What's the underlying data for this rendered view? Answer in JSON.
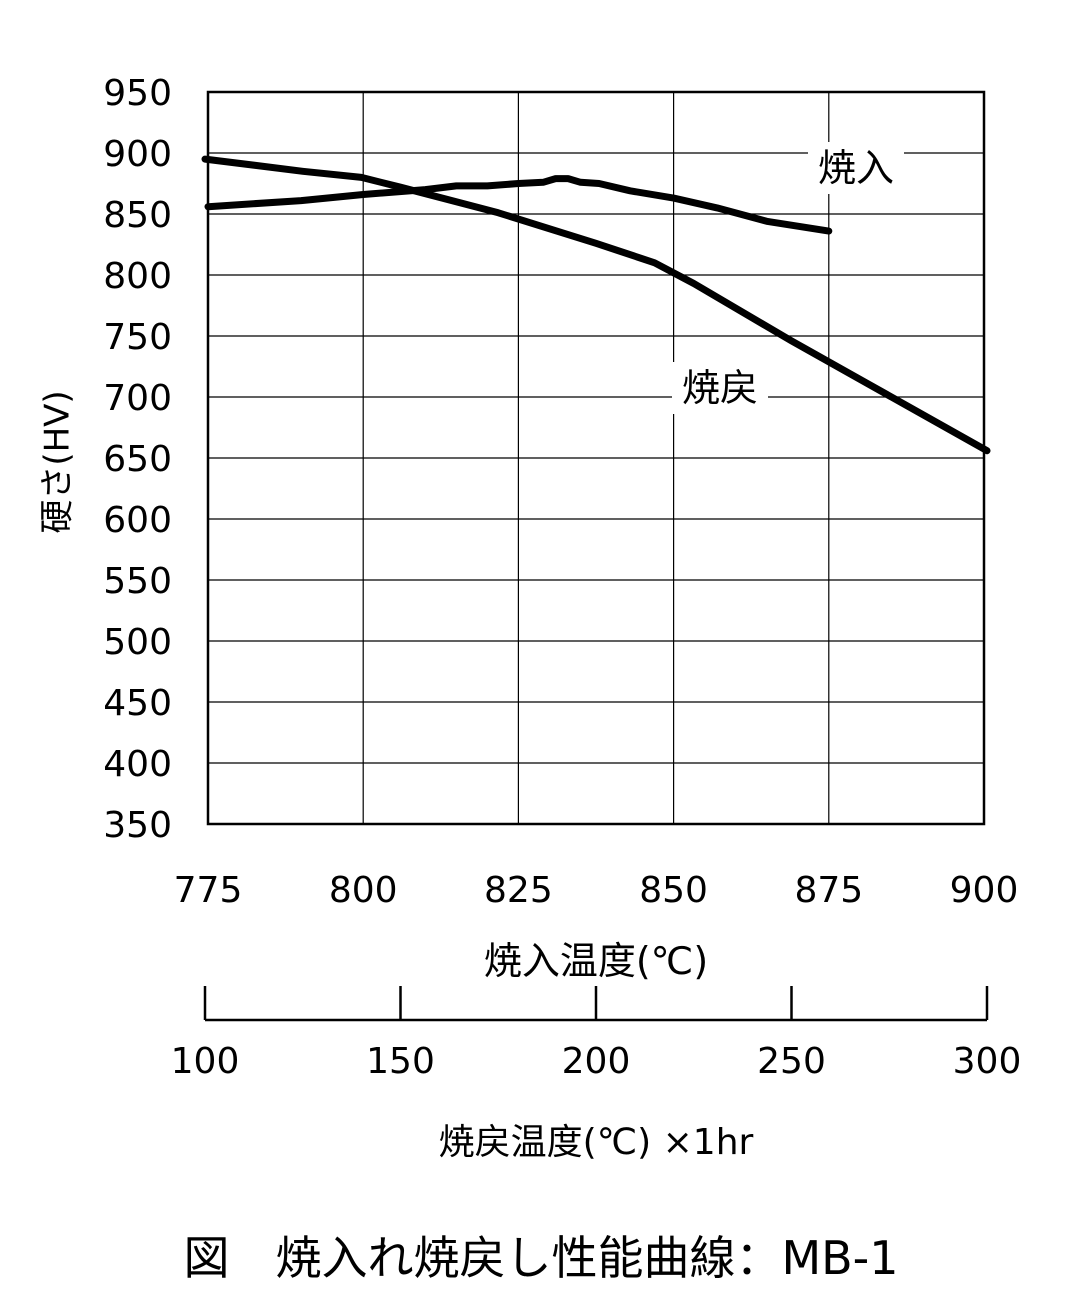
{
  "chart_data": {
    "type": "line",
    "title": "",
    "caption": "図　焼入れ焼戻し性能曲線：MB-1",
    "ylabel": "硬さ(HV)",
    "ylim": [
      350,
      950
    ],
    "yticks": [
      950,
      900,
      850,
      800,
      750,
      700,
      650,
      600,
      550,
      500,
      450,
      400,
      350
    ],
    "xlabel": "焼入温度(℃)",
    "xlim": [
      775,
      900
    ],
    "xticks": [
      775,
      800,
      825,
      850,
      875,
      900
    ],
    "x2label": "焼戻温度(℃) ×1hr",
    "x2lim": [
      100,
      300
    ],
    "x2ticks": [
      100,
      150,
      200,
      250,
      300
    ],
    "grid": true,
    "series": [
      {
        "name": "焼入",
        "axis": "x",
        "points": [
          [
            775,
            856
          ],
          [
            790,
            861
          ],
          [
            800,
            866
          ],
          [
            810,
            870
          ],
          [
            815,
            873
          ],
          [
            820,
            873
          ],
          [
            825,
            875
          ],
          [
            829,
            876
          ],
          [
            831,
            879
          ],
          [
            833,
            879
          ],
          [
            835,
            876
          ],
          [
            838,
            875
          ],
          [
            843,
            869
          ],
          [
            850,
            863
          ],
          [
            857,
            855
          ],
          [
            865,
            844
          ],
          [
            875,
            836
          ]
        ]
      },
      {
        "name": "焼戻",
        "axis": "x2",
        "points": [
          [
            100,
            895
          ],
          [
            125,
            885
          ],
          [
            140,
            880
          ],
          [
            150,
            872
          ],
          [
            175,
            851
          ],
          [
            200,
            826
          ],
          [
            215,
            810
          ],
          [
            225,
            793
          ],
          [
            250,
            746
          ],
          [
            275,
            701
          ],
          [
            300,
            656
          ]
        ]
      }
    ]
  }
}
